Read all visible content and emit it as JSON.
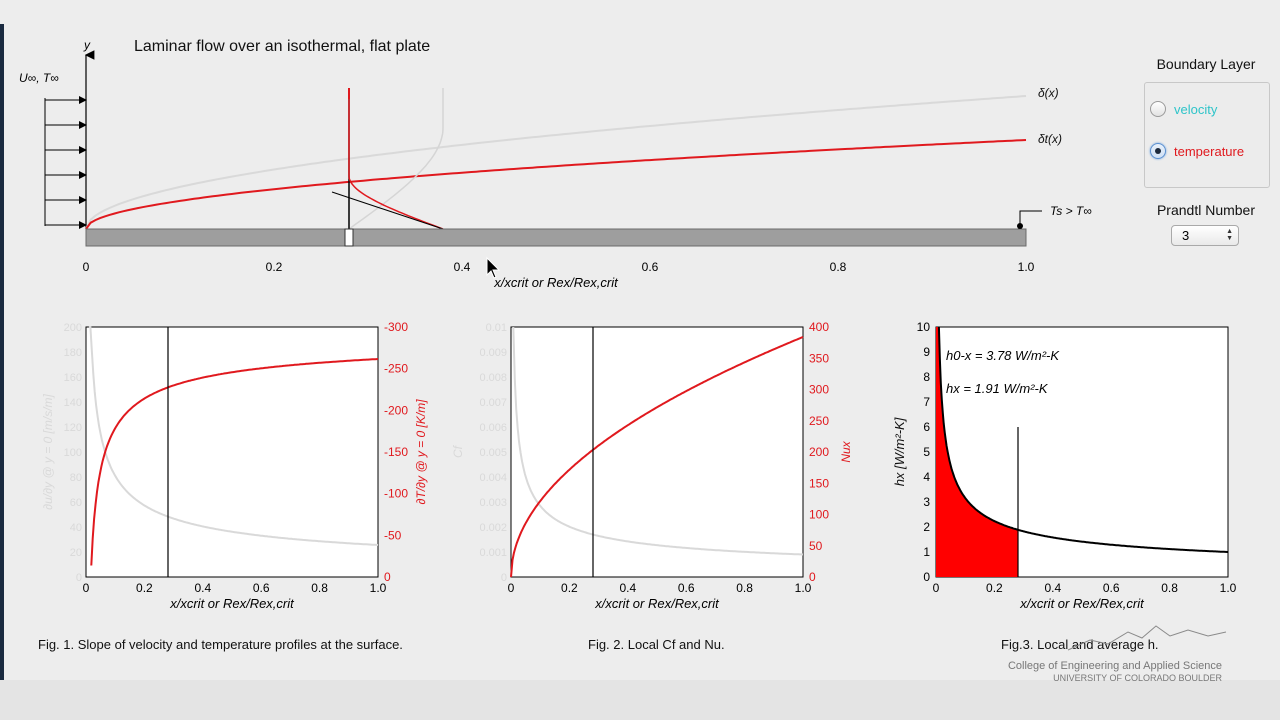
{
  "main_title": "Laminar flow over an isothermal, flat plate",
  "boundary_layer_panel": {
    "title": "Boundary Layer",
    "options": [
      {
        "label": "velocity",
        "color": "#2ec4c9",
        "selected": false
      },
      {
        "label": "temperature",
        "color": "#e0191e",
        "selected": true
      }
    ]
  },
  "prandtl": {
    "title": "Prandtl Number",
    "value": "3"
  },
  "top_plot": {
    "y_axis_label": "y",
    "freestream_label": "U∞, T∞",
    "delta_label": "δ(x)",
    "delta_t_label": "δt(x)",
    "surface_label": "Ts > T∞",
    "x_ticks": [
      "0",
      "0.2",
      "0.4",
      "0.6",
      "0.8",
      "1.0"
    ],
    "x_axis_label": "x/xcrit or Rex/Rex,crit",
    "marker_x": 0.28
  },
  "figures": [
    {
      "caption": "Fig. 1. Slope of velocity and temperature profiles at the surface.",
      "x_ticks": [
        "0",
        "0.2",
        "0.4",
        "0.6",
        "0.8",
        "1.0"
      ],
      "x_label": "x/xcrit or Rex/Rex,crit",
      "left_ticks": [
        "0",
        "20",
        "40",
        "60",
        "80",
        "100",
        "120",
        "140",
        "160",
        "180",
        "200"
      ],
      "left_label": "∂u/∂y @ y = 0 [m/s/m]",
      "right_ticks": [
        "0",
        "-50",
        "-100",
        "-150",
        "-200",
        "-250",
        "-300"
      ],
      "right_label": "∂T/∂y @ y = 0 [K/m]"
    },
    {
      "caption": "Fig. 2. Local Cf and Nu.",
      "x_ticks": [
        "0",
        "0.2",
        "0.4",
        "0.6",
        "0.8",
        "1.0"
      ],
      "x_label": "x/xcrit or Rex/Rex,crit",
      "left_ticks": [
        "0",
        "0.001",
        "0.002",
        "0.003",
        "0.004",
        "0.005",
        "0.006",
        "0.007",
        "0.008",
        "0.009",
        "0.01"
      ],
      "left_label": "Cf",
      "right_ticks": [
        "0",
        "50",
        "100",
        "150",
        "200",
        "250",
        "300",
        "350",
        "400"
      ],
      "right_label": "Nux"
    },
    {
      "caption": "Fig.3. Local and average h.",
      "x_ticks": [
        "0",
        "0.2",
        "0.4",
        "0.6",
        "0.8",
        "1.0"
      ],
      "x_label": "x/xcrit or Rex/Rex,crit",
      "left_ticks": [
        "0",
        "1",
        "2",
        "3",
        "4",
        "5",
        "6",
        "7",
        "8",
        "9",
        "10"
      ],
      "left_label": "hx [W/m²-K]",
      "annotation_avg": "h0-x = 3.78 W/m²-K",
      "annotation_local": "hx = 1.91 W/m²-K"
    }
  ],
  "branding": {
    "college": "College of Engineering and Applied Science",
    "university": "UNIVERSITY OF COLORADO BOULDER"
  }
}
